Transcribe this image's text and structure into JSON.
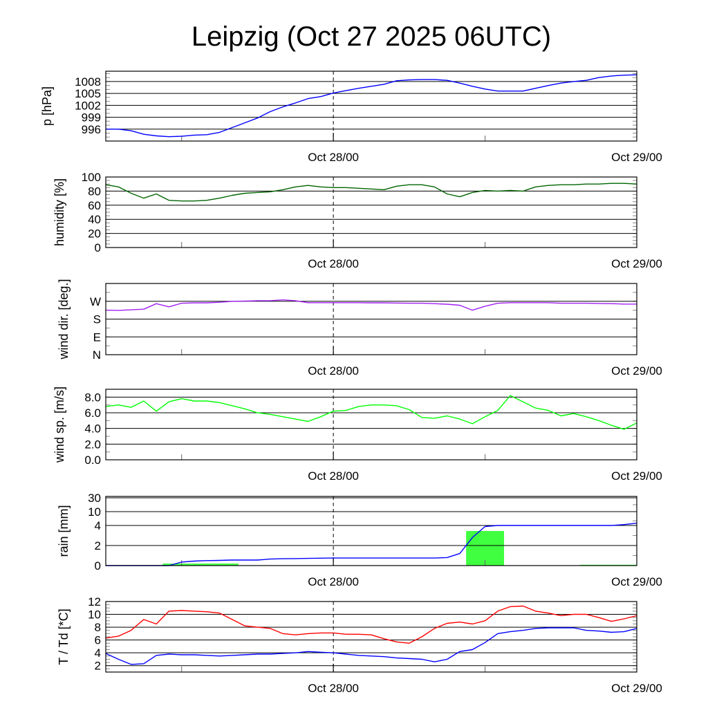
{
  "title": "Leipzig (Oct 27 2025 06UTC)",
  "chart_data": [
    {
      "type": "line",
      "ylabel": "p [hPa]",
      "ylim": [
        993,
        1010.6
      ],
      "yticks": [
        996,
        999,
        1002,
        1005,
        1008
      ],
      "ytick_labels": [
        "996",
        "999",
        "1002",
        "1005",
        "1008"
      ],
      "minor_step": 1,
      "xlabel_ticks": [
        {
          "hour": 18,
          "label": "Oct 28/00"
        },
        {
          "hour": 42,
          "label": "Oct 29/00"
        }
      ],
      "series": [
        {
          "name": "pressure",
          "color": "#0000ff",
          "x_hours_from_start": "0..42 step 1",
          "values": [
            996,
            996,
            995.6,
            994.7,
            994.3,
            994.1,
            994.2,
            994.5,
            994.6,
            995.2,
            996.4,
            997.6,
            998.8,
            1000.4,
            1001.6,
            1002.6,
            1003.7,
            1004.2,
            1005.1,
            1005.7,
            1006.3,
            1006.8,
            1007.3,
            1008.2,
            1008.4,
            1008.5,
            1008.5,
            1008.3,
            1007.6,
            1006.8,
            1006.1,
            1005.6,
            1005.6,
            1005.6,
            1006.3,
            1007,
            1007.6,
            1008,
            1008.3,
            1009,
            1009.4,
            1009.6,
            1009.7
          ]
        }
      ]
    },
    {
      "type": "line",
      "ylabel": "humidity [%]",
      "ylim": [
        0,
        100
      ],
      "yticks": [
        0,
        20,
        40,
        60,
        80,
        100
      ],
      "ytick_labels": [
        "0",
        "20",
        "40",
        "60",
        "80",
        "100"
      ],
      "minor_step": 5,
      "xlabel_ticks": [
        {
          "hour": 18,
          "label": "Oct 28/00"
        },
        {
          "hour": 42,
          "label": "Oct 29/00"
        }
      ],
      "series": [
        {
          "name": "humidity",
          "color": "#006400",
          "values": [
            89,
            86,
            77,
            70,
            76,
            67,
            66,
            66,
            67,
            70,
            74,
            77,
            78,
            79,
            82,
            86,
            88,
            86,
            85,
            85,
            84,
            83,
            82,
            87,
            89,
            89,
            86,
            76,
            72,
            78,
            81,
            80,
            81,
            80,
            86,
            88,
            89,
            89,
            90,
            90,
            91,
            91,
            90
          ]
        }
      ]
    },
    {
      "type": "line",
      "ylabel": "wind dir. [deg.]",
      "ylim": [
        0,
        360
      ],
      "yticks": [
        0,
        90,
        180,
        270
      ],
      "ytick_labels": [
        "N",
        "E",
        "S",
        "W"
      ],
      "minor_step": 45,
      "xlabel_ticks": [
        {
          "hour": 18,
          "label": "Oct 28/00"
        },
        {
          "hour": 42,
          "label": "Oct 29/00"
        }
      ],
      "series": [
        {
          "name": "wind direction",
          "color": "#a020f0",
          "values": [
            225,
            224,
            227,
            230,
            258,
            242,
            260,
            262,
            262,
            265,
            270,
            271,
            273,
            273,
            277,
            273,
            263,
            263,
            263,
            263,
            263,
            262,
            262,
            261,
            260,
            260,
            258,
            255,
            250,
            225,
            245,
            260,
            263,
            263,
            263,
            263,
            260,
            260,
            260,
            259,
            258,
            256,
            256
          ]
        }
      ]
    },
    {
      "type": "line",
      "ylabel": "wind sp. [m/s]",
      "ylim": [
        0,
        9
      ],
      "yticks": [
        0,
        2,
        4,
        6,
        8
      ],
      "ytick_labels": [
        "0.0",
        "2.0",
        "4.0",
        "6.0",
        "8.0"
      ],
      "minor_step": 1,
      "xlabel_ticks": [
        {
          "hour": 18,
          "label": "Oct 28/00"
        },
        {
          "hour": 42,
          "label": "Oct 29/00"
        }
      ],
      "series": [
        {
          "name": "wind speed",
          "color": "#00ff00",
          "values": [
            6.8,
            7.0,
            6.7,
            7.5,
            6.2,
            7.4,
            7.8,
            7.5,
            7.5,
            7.3,
            6.9,
            6.5,
            6.0,
            5.8,
            5.5,
            5.2,
            4.9,
            5.5,
            6.2,
            6.3,
            6.8,
            7.0,
            7.0,
            6.9,
            6.4,
            5.4,
            5.3,
            5.6,
            5.2,
            4.6,
            5.5,
            6.3,
            8.2,
            7.4,
            6.6,
            6.3,
            5.6,
            5.9,
            5.5,
            5.0,
            4.4,
            3.9,
            4.7
          ]
        }
      ]
    },
    {
      "type": "bar+line",
      "ylabel": "rain [mm]",
      "ylim": [
        0,
        30
      ],
      "yticks": [
        0,
        2,
        4,
        10,
        30
      ],
      "ytick_labels": [
        "0",
        "2",
        "4",
        "10",
        "30"
      ],
      "xlabel_ticks": [
        {
          "hour": 18,
          "label": "Oct 28/00"
        },
        {
          "hour": 42,
          "label": "Oct 29/00"
        }
      ],
      "bars": [
        {
          "name": "3h precipitation",
          "color": "#40ff40",
          "start_hour": 4.5,
          "end_hour": 10.5,
          "value": 0.2
        },
        {
          "name": "3h precipitation",
          "color": "#40ff40",
          "start_hour": 28.5,
          "end_hour": 31.5,
          "value": 3.45
        },
        {
          "name": "3h precipitation",
          "color": "#40ff40",
          "start_hour": 37.5,
          "end_hour": 42,
          "value": 0.08
        }
      ],
      "series": [
        {
          "name": "accumulated rain",
          "color": "#0000ff",
          "values": [
            0,
            0,
            0,
            0,
            0,
            0,
            0.35,
            0.45,
            0.5,
            0.52,
            0.55,
            0.55,
            0.55,
            0.65,
            0.68,
            0.7,
            0.72,
            0.74,
            0.75,
            0.75,
            0.75,
            0.75,
            0.75,
            0.75,
            0.75,
            0.75,
            0.75,
            0.8,
            1.2,
            2.8,
            3.9,
            4.0,
            4.0,
            4.0,
            4.0,
            4.0,
            4.0,
            4.0,
            4.0,
            4.0,
            4.0,
            4.4,
            5.0
          ]
        }
      ]
    },
    {
      "type": "line",
      "ylabel": "T / Td [*C]",
      "ylim": [
        1,
        12
      ],
      "yticks": [
        2,
        4,
        6,
        8,
        10,
        12
      ],
      "ytick_labels": [
        "2",
        "4",
        "6",
        "8",
        "10",
        "12"
      ],
      "minor_step": 0.5,
      "xlabel_ticks": [
        {
          "hour": 18,
          "label": "Oct 28/00"
        },
        {
          "hour": 42,
          "label": "Oct 29/00"
        }
      ],
      "series": [
        {
          "name": "temperature",
          "color": "#ff0000",
          "values": [
            6.3,
            6.6,
            7.5,
            9.2,
            8.5,
            10.5,
            10.6,
            10.5,
            10.4,
            10.2,
            9.2,
            8.2,
            8.0,
            7.8,
            7.0,
            6.8,
            7.0,
            7.1,
            7.1,
            6.9,
            6.9,
            6.8,
            6.2,
            5.7,
            5.5,
            6.5,
            7.8,
            8.6,
            8.8,
            8.5,
            9.0,
            10.5,
            11.2,
            11.3,
            10.5,
            10.2,
            9.8,
            10.0,
            10.0,
            9.5,
            8.9,
            9.3,
            9.8
          ]
        },
        {
          "name": "dew point",
          "color": "#0000ff",
          "values": [
            3.9,
            3.0,
            2.2,
            2.3,
            3.6,
            3.8,
            3.7,
            3.7,
            3.6,
            3.5,
            3.6,
            3.7,
            3.8,
            3.8,
            3.9,
            4.0,
            4.2,
            4.1,
            4.0,
            3.8,
            3.6,
            3.5,
            3.4,
            3.2,
            3.1,
            3.0,
            2.6,
            3.0,
            4.2,
            4.5,
            5.6,
            7.0,
            7.3,
            7.5,
            7.8,
            7.9,
            7.9,
            7.9,
            7.5,
            7.4,
            7.2,
            7.3,
            7.8
          ]
        }
      ]
    }
  ]
}
